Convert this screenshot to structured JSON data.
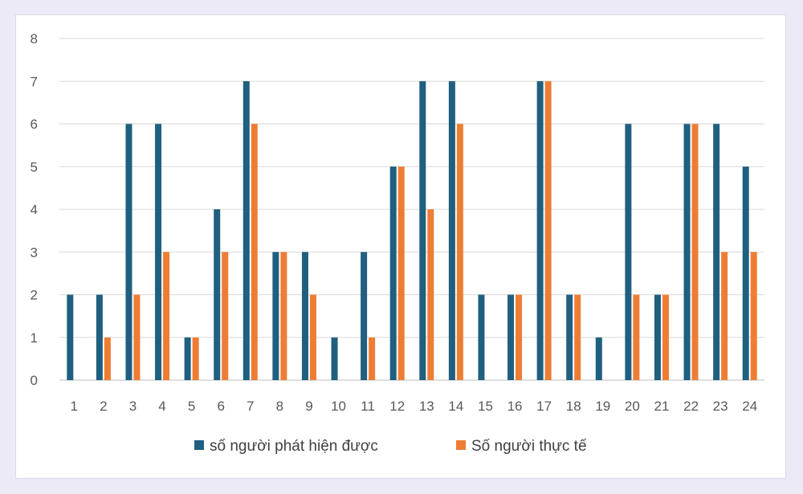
{
  "chart_data": {
    "type": "bar",
    "categories": [
      "1",
      "2",
      "3",
      "4",
      "5",
      "6",
      "7",
      "8",
      "9",
      "10",
      "11",
      "12",
      "13",
      "14",
      "15",
      "16",
      "17",
      "18",
      "19",
      "20",
      "21",
      "22",
      "23",
      "24"
    ],
    "series": [
      {
        "name": "số người phát hiện được",
        "color": "#1f5f7f",
        "values": [
          2,
          2,
          6,
          6,
          1,
          4,
          7,
          3,
          3,
          1,
          3,
          5,
          7,
          7,
          2,
          2,
          7,
          2,
          1,
          6,
          2,
          6,
          6,
          5
        ]
      },
      {
        "name": "Số người thực tế",
        "color": "#ee7d34",
        "values": [
          0,
          1,
          2,
          3,
          1,
          3,
          6,
          3,
          2,
          0,
          1,
          5,
          4,
          6,
          0,
          2,
          7,
          2,
          0,
          2,
          2,
          6,
          3,
          3
        ]
      }
    ],
    "ylim": [
      0,
      8
    ],
    "yticks": [
      0,
      1,
      2,
      3,
      4,
      5,
      6,
      7,
      8
    ],
    "grid": true,
    "legend": "bottom",
    "title": "",
    "xlabel": "",
    "ylabel": ""
  }
}
